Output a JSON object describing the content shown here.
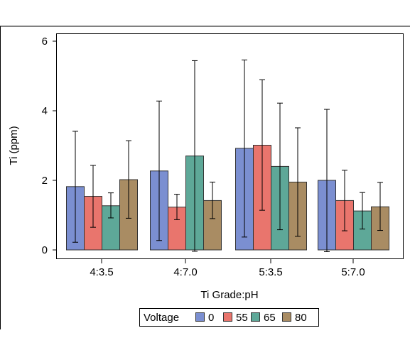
{
  "chart_data": {
    "type": "bar",
    "xlabel": "Ti Grade:pH",
    "ylabel": "Ti (ppm)",
    "ylim": [
      0,
      6
    ],
    "yticks": [
      0,
      2,
      4,
      6
    ],
    "grid": false,
    "legend_placement": "bottom-center",
    "legend_title": "Voltage",
    "categories": [
      "4:3.5",
      "4:7.0",
      "5:3.5",
      "5:7.0"
    ],
    "series": [
      {
        "name": "0",
        "color": "#7b8fd1",
        "values": [
          1.82,
          2.27,
          2.92,
          2.0
        ],
        "error_low": [
          0.22,
          0.27,
          0.37,
          -0.05
        ],
        "error_high": [
          3.41,
          4.28,
          5.46,
          4.04
        ]
      },
      {
        "name": "55",
        "color": "#e9756d",
        "values": [
          1.54,
          1.23,
          3.01,
          1.42
        ],
        "error_low": [
          0.65,
          0.87,
          1.14,
          0.55
        ],
        "error_high": [
          2.43,
          1.6,
          4.89,
          2.29
        ]
      },
      {
        "name": "65",
        "color": "#5ea898",
        "values": [
          1.27,
          2.7,
          2.4,
          1.12
        ],
        "error_low": [
          0.92,
          -0.04,
          0.58,
          0.6
        ],
        "error_high": [
          1.64,
          5.44,
          4.22,
          1.65
        ]
      },
      {
        "name": "80",
        "color": "#a98c63",
        "values": [
          2.02,
          1.42,
          1.95,
          1.24
        ],
        "error_low": [
          0.91,
          0.9,
          0.39,
          0.56
        ],
        "error_high": [
          3.14,
          1.95,
          3.51,
          1.94
        ]
      }
    ]
  }
}
